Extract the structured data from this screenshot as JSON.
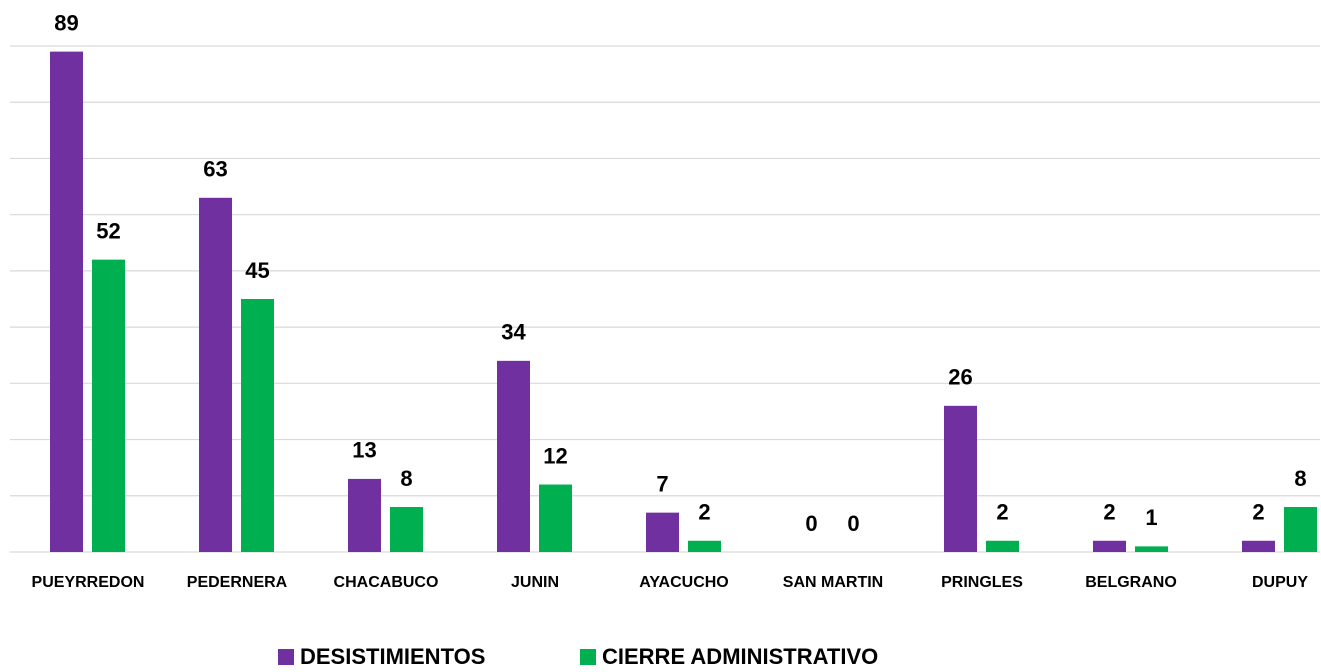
{
  "chart_data": {
    "type": "bar",
    "categories": [
      "PUEYRREDON",
      "PEDERNERA",
      "CHACABUCO",
      "JUNIN",
      "AYACUCHO",
      "SAN MARTIN",
      "PRINGLES",
      "BELGRANO",
      "DUPUY"
    ],
    "series": [
      {
        "name": "DESISTIMIENTOS",
        "color": "#7030a0",
        "values": [
          89,
          63,
          13,
          34,
          7,
          0,
          26,
          2,
          2
        ]
      },
      {
        "name": "CIERRE ADMINISTRATIVO",
        "color": "#00b050",
        "values": [
          52,
          45,
          8,
          12,
          2,
          0,
          2,
          1,
          8
        ]
      }
    ],
    "ylim": [
      0,
      90
    ],
    "yticks": [
      0,
      10,
      20,
      30,
      40,
      50,
      60,
      70,
      80,
      90
    ],
    "grid": true
  }
}
